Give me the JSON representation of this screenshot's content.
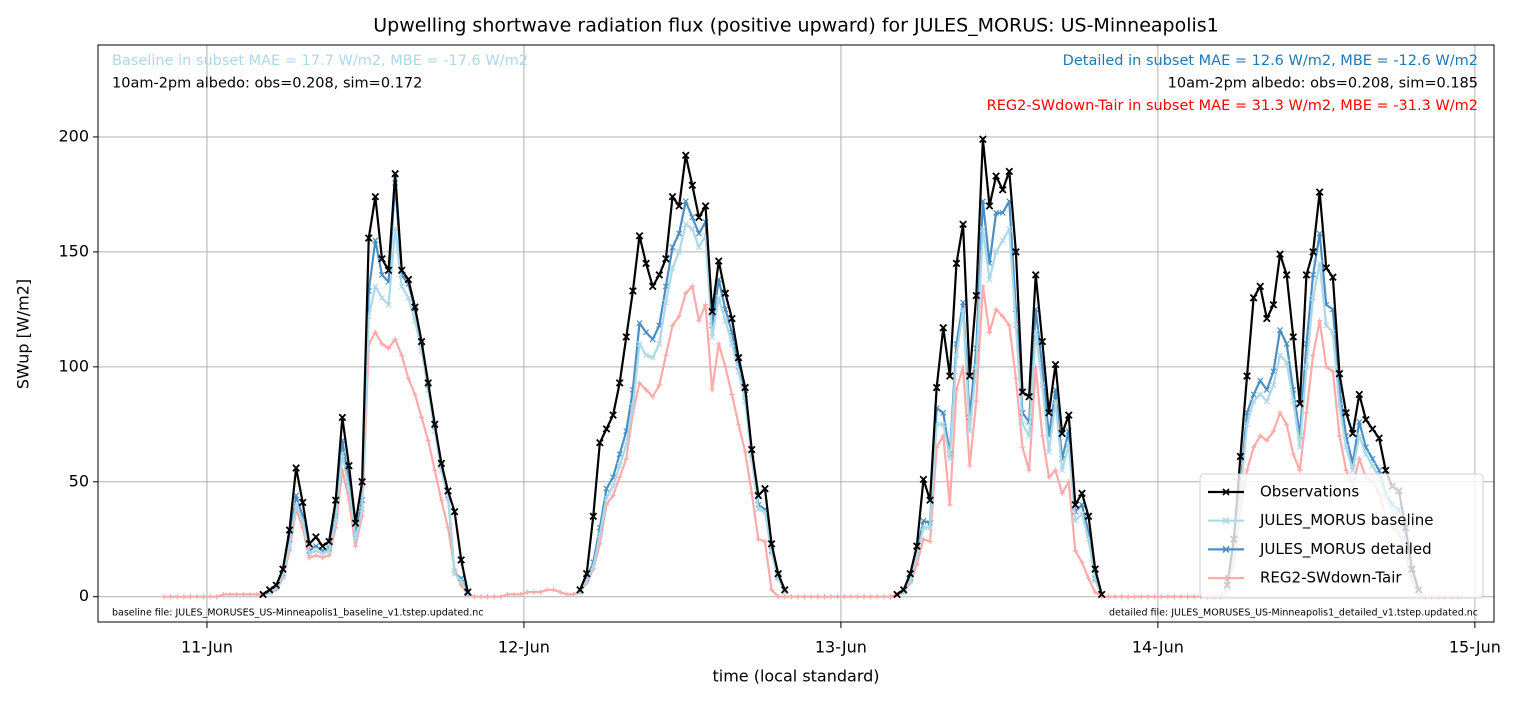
{
  "chart_data": {
    "type": "line",
    "title": "Upwelling shortwave radiation flux (positive upward) for JULES_MORUS: US-Minneapolis1",
    "x_label": "time (local standard)",
    "y_label": "SWup [W/m2]",
    "xlim": [
      -8.25,
      97.45
    ],
    "ylim": [
      -11,
      240
    ],
    "xticks": [
      {
        "value": 0,
        "label": "11-Jun"
      },
      {
        "value": 24,
        "label": "12-Jun"
      },
      {
        "value": 48,
        "label": "13-Jun"
      },
      {
        "value": 72,
        "label": "14-Jun"
      },
      {
        "value": 96,
        "label": "15-Jun"
      }
    ],
    "yticks": [
      0,
      50,
      100,
      150,
      200
    ],
    "grid": true,
    "legend_position": "lower-right",
    "annotations": [
      {
        "text": "Baseline in subset MAE = 17.7 W/m2, MBE = -17.6 W/m2",
        "color": "#add8e6",
        "position": "top-left"
      },
      {
        "text": "10am-2pm albedo: obs=0.208, sim=0.172",
        "color": "#000000",
        "position": "top-left"
      },
      {
        "text": "Detailed in subset MAE = 12.6 W/m2, MBE = -12.6 W/m2",
        "color": "#1f77b4",
        "position": "top-right"
      },
      {
        "text": "10am-2pm albedo: obs=0.208, sim=0.185",
        "color": "#000000",
        "position": "top-right"
      },
      {
        "text": "REG2-SWdown-Tair in subset MAE = 31.3 W/m2, MBE = -31.3 W/m2",
        "color": "#ff0000",
        "position": "top-right"
      },
      {
        "text": "baseline file: JULES_MORUSES_US-Minneapolis1_baseline_v1.tstep.updated.nc",
        "color": "#000000",
        "position": "bottom-left"
      },
      {
        "text": "detailed file: JULES_MORUSES_US-Minneapolis1_detailed_v1.tstep.updated.nc",
        "color": "#000000",
        "position": "bottom-right"
      }
    ],
    "x": [
      -3.25,
      -2.75,
      -2.25,
      -1.75,
      -1.25,
      -0.75,
      -0.25,
      0.25,
      0.75,
      1.25,
      1.75,
      2.25,
      2.75,
      3.25,
      3.75,
      4.25,
      4.75,
      5.25,
      5.75,
      6.25,
      6.75,
      7.25,
      7.75,
      8.25,
      8.75,
      9.25,
      9.75,
      10.25,
      10.75,
      11.25,
      11.75,
      12.25,
      12.75,
      13.25,
      13.75,
      14.25,
      14.75,
      15.25,
      15.75,
      16.25,
      16.75,
      17.25,
      17.75,
      18.25,
      18.75,
      19.25,
      19.75,
      20.25,
      20.75,
      21.25,
      21.75,
      22.25,
      22.75,
      23.25,
      23.75,
      24.25,
      24.75,
      25.25,
      25.75,
      26.25,
      26.75,
      27.25,
      27.75,
      28.25,
      28.75,
      29.25,
      29.75,
      30.25,
      30.75,
      31.25,
      31.75,
      32.25,
      32.75,
      33.25,
      33.75,
      34.25,
      34.75,
      35.25,
      35.75,
      36.25,
      36.75,
      37.25,
      37.75,
      38.25,
      38.75,
      39.25,
      39.75,
      40.25,
      40.75,
      41.25,
      41.75,
      42.25,
      42.75,
      43.25,
      43.75,
      44.25,
      44.75,
      45.25,
      45.75,
      46.25,
      46.75,
      47.25,
      47.75,
      48.25,
      48.75,
      49.25,
      49.75,
      50.25,
      50.75,
      51.25,
      51.75,
      52.25,
      52.75,
      53.25,
      53.75,
      54.25,
      54.75,
      55.25,
      55.75,
      56.25,
      56.75,
      57.25,
      57.75,
      58.25,
      58.75,
      59.25,
      59.75,
      60.25,
      60.75,
      61.25,
      61.75,
      62.25,
      62.75,
      63.25,
      63.75,
      64.25,
      64.75,
      65.25,
      65.75,
      66.25,
      66.75,
      67.25,
      67.75,
      68.25,
      68.75,
      69.25,
      69.75,
      70.25,
      70.75,
      71.25,
      71.75,
      72.25,
      72.75,
      73.25,
      73.75,
      74.25,
      74.75,
      75.25,
      75.75,
      76.25,
      76.75,
      77.25,
      77.75,
      78.25,
      78.75,
      79.25,
      79.75,
      80.25,
      80.75,
      81.25,
      81.75,
      82.25,
      82.75,
      83.25,
      83.75,
      84.25,
      84.75,
      85.25,
      85.75,
      86.25,
      86.75,
      87.25,
      87.75,
      88.25,
      88.75,
      89.25,
      89.75,
      90.25,
      90.75,
      91.25,
      91.75,
      92.25,
      92.75,
      93.25,
      93.75,
      94.25,
      94.75
    ],
    "series": [
      {
        "name": "Observations",
        "color": "#000000",
        "marker": "x",
        "values": [
          null,
          null,
          null,
          null,
          null,
          null,
          null,
          null,
          null,
          null,
          null,
          null,
          null,
          null,
          null,
          1,
          3,
          5,
          12,
          29,
          56,
          41,
          23,
          26,
          22,
          24,
          42,
          78,
          57,
          32,
          50,
          156,
          174,
          147,
          142,
          184,
          142,
          138,
          126,
          111,
          93,
          75,
          58,
          46,
          37,
          16,
          2,
          null,
          null,
          null,
          null,
          null,
          null,
          null,
          null,
          null,
          null,
          null,
          null,
          null,
          null,
          null,
          null,
          3,
          10,
          35,
          67,
          73,
          79,
          93,
          113,
          133,
          157,
          145,
          135,
          140,
          147,
          174,
          170,
          192,
          179,
          165,
          170,
          124,
          146,
          132,
          121,
          104,
          91,
          64,
          44,
          47,
          23,
          10,
          3,
          null,
          null,
          null,
          null,
          null,
          null,
          null,
          null,
          null,
          null,
          null,
          null,
          null,
          null,
          null,
          null,
          1,
          3,
          10,
          22,
          51,
          42,
          91,
          117,
          96,
          145,
          162,
          96,
          131,
          199,
          170,
          183,
          177,
          185,
          150,
          89,
          87,
          140,
          111,
          80,
          101,
          71,
          79,
          40,
          45,
          35,
          12,
          1,
          null,
          null,
          null,
          null,
          null,
          null,
          null,
          null,
          null,
          null,
          null,
          null,
          null,
          null,
          null,
          null,
          null,
          null,
          5,
          25,
          61,
          96,
          130,
          135,
          121,
          127,
          149,
          140,
          113,
          84,
          140,
          150,
          176,
          143,
          139,
          97,
          80,
          71,
          88,
          77,
          73,
          69,
          55,
          48,
          46,
          30,
          12,
          3,
          null,
          null,
          null,
          null,
          null,
          null
        ]
      },
      {
        "name": "JULES_MORUS baseline",
        "color": "#add8e6",
        "marker": "x",
        "values": [
          null,
          null,
          null,
          null,
          null,
          null,
          null,
          null,
          null,
          null,
          null,
          null,
          null,
          null,
          null,
          1,
          2,
          4,
          9,
          22,
          40,
          33,
          19,
          20,
          19,
          20,
          33,
          62,
          47,
          25,
          38,
          122,
          135,
          130,
          127,
          160,
          135,
          130,
          120,
          107,
          90,
          72,
          55,
          43,
          10,
          7,
          1,
          null,
          null,
          null,
          null,
          null,
          null,
          null,
          null,
          null,
          null,
          null,
          null,
          null,
          null,
          null,
          null,
          2,
          7,
          13,
          27,
          43,
          48,
          57,
          66,
          83,
          110,
          105,
          104,
          110,
          128,
          143,
          150,
          162,
          160,
          152,
          157,
          113,
          130,
          120,
          110,
          98,
          85,
          60,
          38,
          37,
          19,
          8,
          2,
          null,
          null,
          null,
          null,
          null,
          null,
          null,
          null,
          null,
          null,
          null,
          null,
          null,
          null,
          null,
          null,
          1,
          2,
          7,
          18,
          30,
          30,
          75,
          75,
          60,
          105,
          125,
          72,
          100,
          160,
          138,
          150,
          155,
          160,
          118,
          75,
          70,
          115,
          92,
          63,
          85,
          55,
          66,
          33,
          36,
          25,
          7,
          1,
          null,
          null,
          null,
          null,
          null,
          null,
          null,
          null,
          null,
          null,
          null,
          null,
          null,
          null,
          null,
          null,
          null,
          null,
          4,
          18,
          45,
          75,
          85,
          88,
          85,
          92,
          105,
          102,
          85,
          65,
          100,
          130,
          145,
          118,
          115,
          83,
          65,
          55,
          70,
          62,
          57,
          52,
          43,
          38,
          36,
          24,
          9,
          2,
          null,
          null,
          null,
          null,
          null,
          null
        ]
      },
      {
        "name": "JULES_MORUS detailed",
        "color": "#4a8fc4",
        "marker": "x",
        "values": [
          null,
          null,
          null,
          null,
          null,
          null,
          null,
          null,
          null,
          null,
          null,
          null,
          null,
          null,
          null,
          1,
          2,
          4,
          10,
          25,
          44,
          35,
          20,
          22,
          20,
          21,
          35,
          68,
          50,
          27,
          42,
          133,
          155,
          140,
          137,
          180,
          140,
          136,
          125,
          110,
          92,
          74,
          57,
          44,
          10,
          8,
          1,
          null,
          null,
          null,
          null,
          null,
          null,
          null,
          null,
          null,
          null,
          null,
          null,
          null,
          null,
          null,
          null,
          3,
          8,
          15,
          30,
          47,
          52,
          62,
          72,
          90,
          119,
          115,
          112,
          118,
          135,
          152,
          158,
          172,
          165,
          158,
          163,
          118,
          138,
          125,
          115,
          100,
          88,
          62,
          40,
          38,
          20,
          9,
          3,
          null,
          null,
          null,
          null,
          null,
          null,
          null,
          null,
          null,
          null,
          null,
          null,
          null,
          null,
          null,
          null,
          1,
          2,
          8,
          20,
          33,
          32,
          82,
          80,
          62,
          110,
          128,
          78,
          108,
          172,
          145,
          167,
          167,
          172,
          125,
          80,
          76,
          125,
          100,
          70,
          90,
          60,
          72,
          37,
          40,
          28,
          8,
          1,
          null,
          null,
          null,
          null,
          null,
          null,
          null,
          null,
          null,
          null,
          null,
          null,
          null,
          null,
          null,
          null,
          null,
          null,
          4,
          20,
          48,
          80,
          88,
          94,
          90,
          98,
          116,
          110,
          90,
          70,
          110,
          140,
          158,
          127,
          125,
          90,
          70,
          58,
          76,
          65,
          60,
          55,
          45,
          40,
          38,
          25,
          10,
          2,
          null,
          null,
          null,
          null,
          null,
          null
        ]
      },
      {
        "name": "REG2-SWdown-Tair",
        "color": "#ffaaaa",
        "marker": "+",
        "values": [
          0,
          0,
          0,
          0,
          0,
          0,
          0,
          0,
          0,
          1,
          1,
          1,
          1,
          1,
          1,
          1,
          2,
          3,
          8,
          20,
          38,
          30,
          17,
          18,
          17,
          18,
          30,
          55,
          42,
          22,
          35,
          110,
          115,
          110,
          108,
          112,
          105,
          95,
          88,
          78,
          68,
          55,
          42,
          30,
          12,
          5,
          1,
          0,
          0,
          0,
          0,
          0,
          1,
          1,
          1,
          2,
          2,
          2,
          3,
          3,
          2,
          1,
          1,
          2,
          6,
          12,
          23,
          40,
          44,
          52,
          60,
          80,
          93,
          90,
          87,
          92,
          105,
          118,
          122,
          132,
          135,
          120,
          127,
          90,
          110,
          100,
          88,
          75,
          63,
          45,
          25,
          24,
          3,
          0,
          0,
          0,
          0,
          0,
          0,
          0,
          0,
          0,
          0,
          0,
          0,
          0,
          0,
          0,
          0,
          0,
          0,
          1,
          2,
          6,
          14,
          25,
          24,
          65,
          70,
          40,
          90,
          100,
          57,
          85,
          135,
          115,
          125,
          122,
          118,
          95,
          65,
          55,
          100,
          70,
          52,
          55,
          45,
          50,
          20,
          15,
          8,
          2,
          0,
          0,
          0,
          0,
          0,
          0,
          0,
          0,
          0,
          0,
          0,
          0,
          0,
          0,
          0,
          0,
          0,
          0,
          0,
          3,
          15,
          38,
          55,
          65,
          70,
          68,
          72,
          80,
          75,
          62,
          55,
          80,
          105,
          120,
          100,
          98,
          70,
          55,
          48,
          60,
          52,
          50,
          45,
          35,
          30,
          28,
          18,
          7,
          1,
          0,
          0,
          0,
          0,
          0,
          0
        ]
      }
    ]
  }
}
